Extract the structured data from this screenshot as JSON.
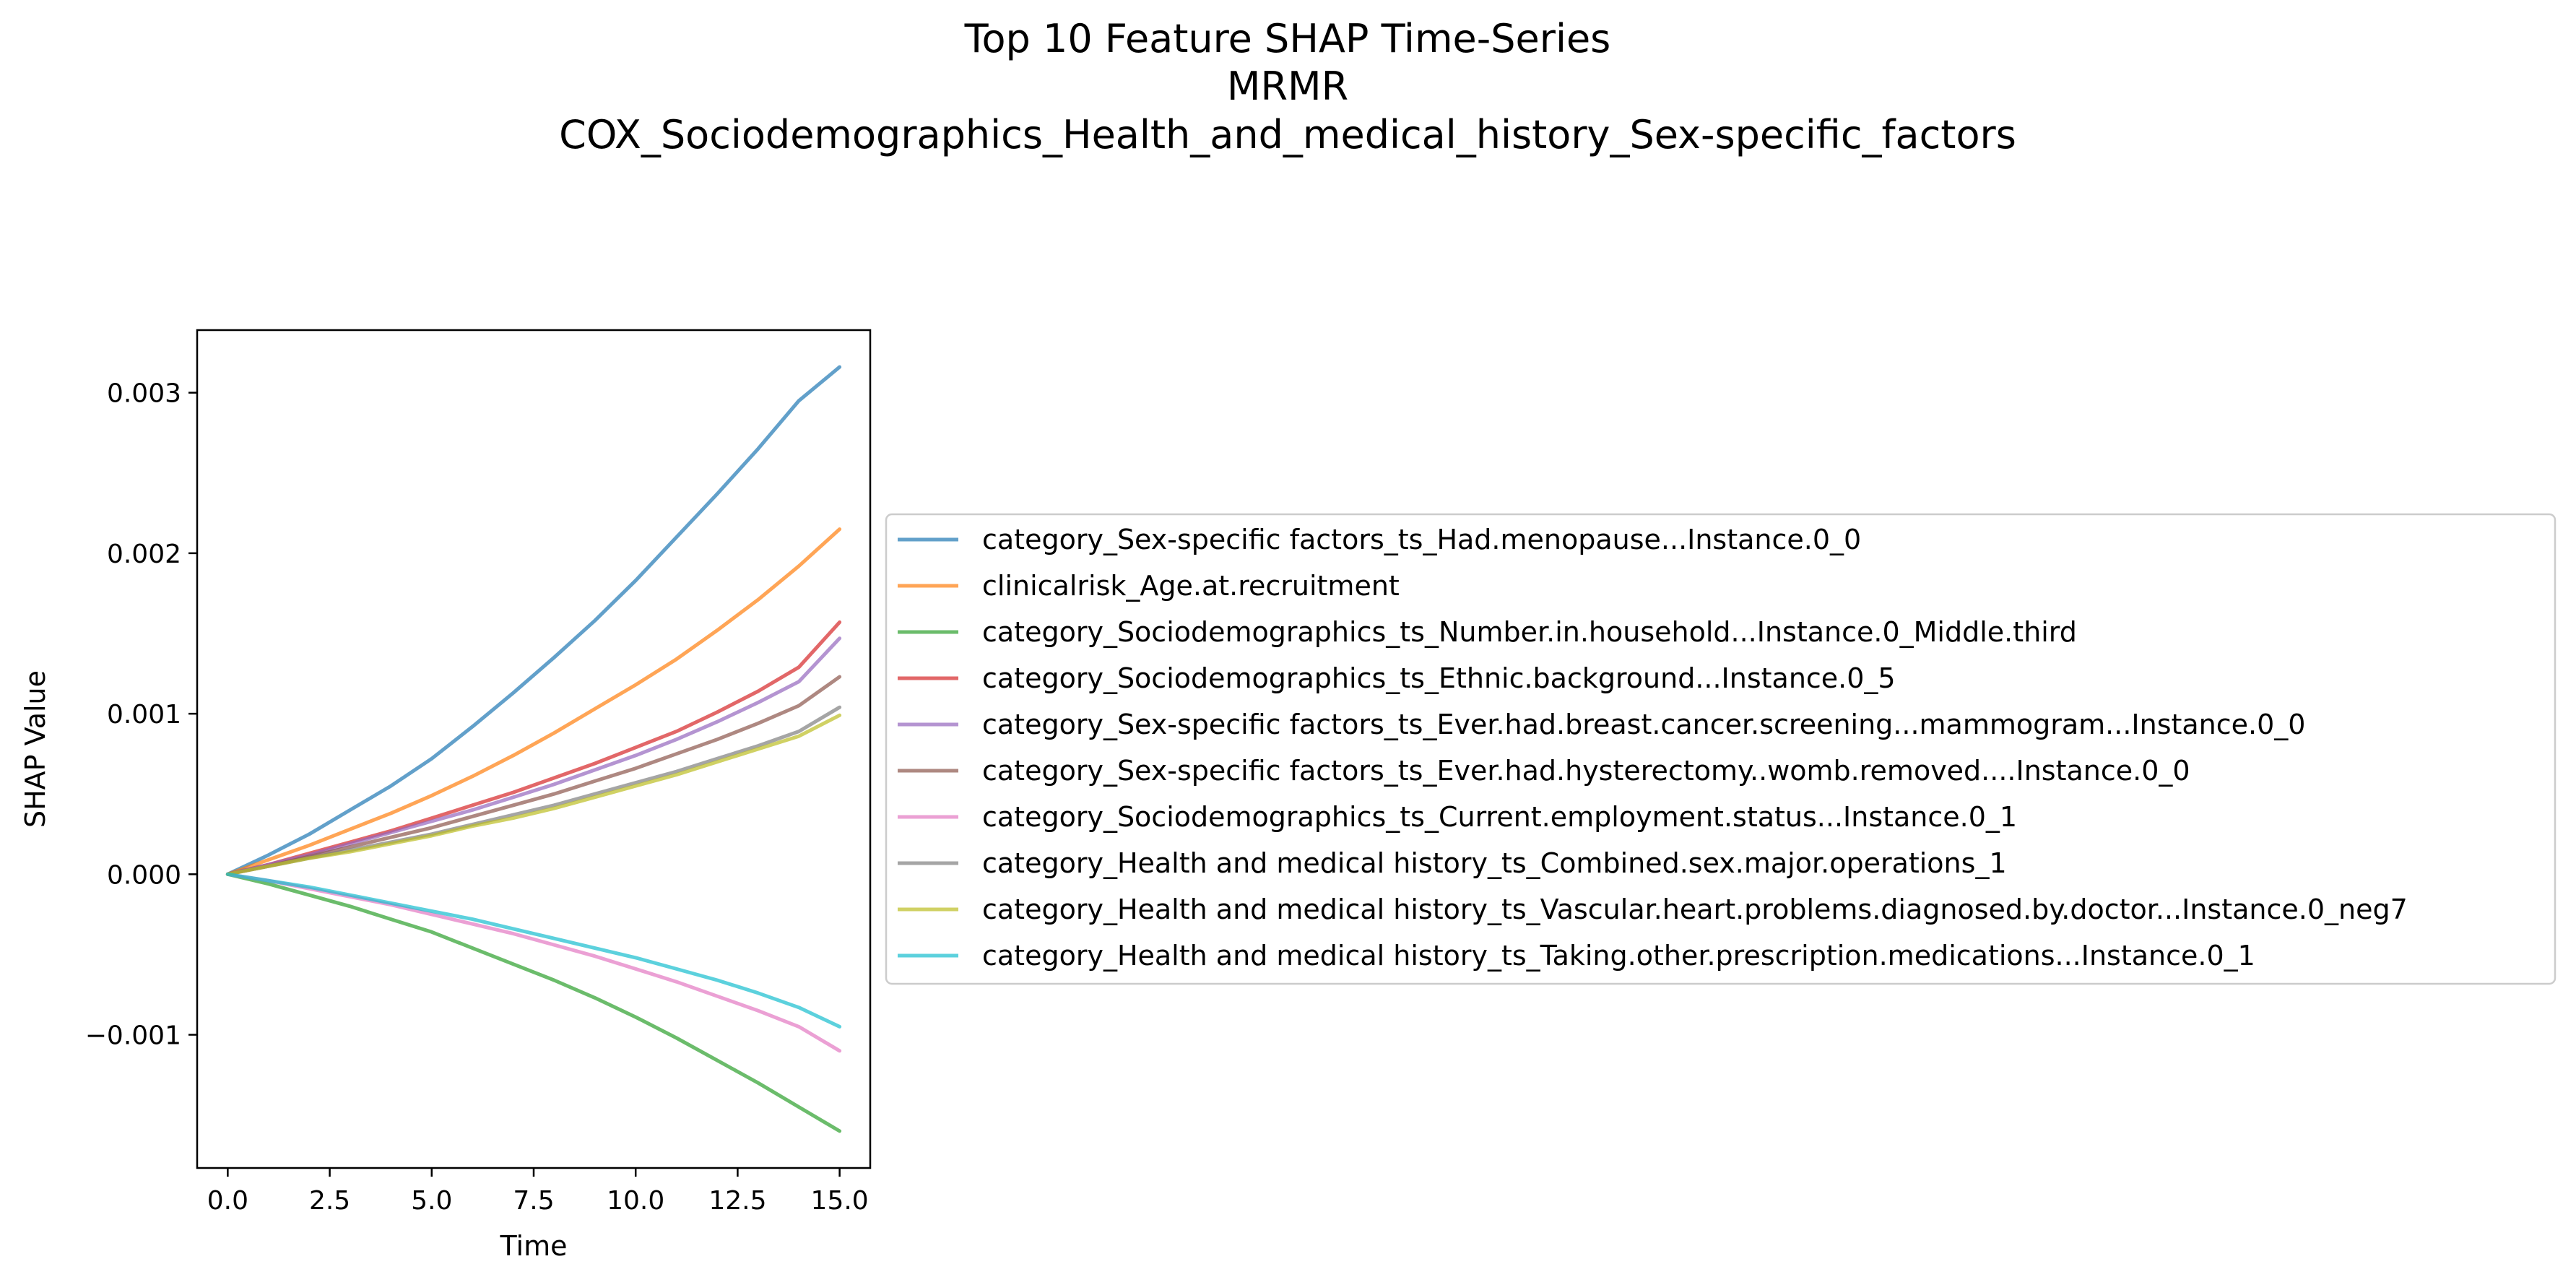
{
  "chart_data": {
    "type": "line",
    "title_lines": [
      "Top 10 Feature SHAP Time-Series",
      "MRMR",
      "COX_Sociodemographics_Health_and_medical_history_Sex-specific_factors"
    ],
    "xlabel": "Time",
    "ylabel": "SHAP Value",
    "xlim": [
      -0.75,
      15.75
    ],
    "ylim": [
      -0.00183,
      0.00339
    ],
    "xticks": [
      0,
      2.5,
      5,
      7.5,
      10,
      12.5,
      15
    ],
    "xtick_labels": [
      "0.0",
      "2.5",
      "5.0",
      "7.5",
      "10.0",
      "12.5",
      "15.0"
    ],
    "yticks": [
      -0.001,
      0,
      0.001,
      0.002,
      0.003
    ],
    "ytick_labels": [
      "−0.001",
      "0.000",
      "0.001",
      "0.002",
      "0.003"
    ],
    "grid": false,
    "legend_position": "center-left outside plot (right side)",
    "x": [
      0,
      1,
      2,
      3,
      4,
      5,
      6,
      7,
      8,
      9,
      10,
      11,
      12,
      13,
      14,
      15
    ],
    "series": [
      {
        "name": "category_Sex-specific factors_ts_Had.menopause...Instance.0_0",
        "color": "#1f77b4",
        "values": [
          0,
          0.00012,
          0.00025,
          0.0004,
          0.00055,
          0.00072,
          0.00092,
          0.00113,
          0.00135,
          0.00158,
          0.00183,
          0.0021,
          0.00237,
          0.00265,
          0.00295,
          0.00316
        ]
      },
      {
        "name": "clinicalrisk_Age.at.recruitment",
        "color": "#ff7f0e",
        "values": [
          0,
          9e-05,
          0.00018,
          0.00028,
          0.00038,
          0.00049,
          0.00061,
          0.00074,
          0.00088,
          0.00103,
          0.00118,
          0.00134,
          0.00152,
          0.00171,
          0.00192,
          0.00215
        ]
      },
      {
        "name": "category_Sociodemographics_ts_Number.in.household...Instance.0_Middle.third",
        "color": "#2ca02c",
        "values": [
          0,
          -6e-05,
          -0.00013,
          -0.0002,
          -0.00028,
          -0.00036,
          -0.00046,
          -0.00056,
          -0.00066,
          -0.00077,
          -0.00089,
          -0.00102,
          -0.00116,
          -0.0013,
          -0.00145,
          -0.0016
        ]
      },
      {
        "name": "category_Sociodemographics_ts_Ethnic.background...Instance.0_5",
        "color": "#d62728",
        "values": [
          0,
          6e-05,
          0.00013,
          0.0002,
          0.00027,
          0.00035,
          0.00043,
          0.00051,
          0.0006,
          0.00069,
          0.00079,
          0.00089,
          0.00101,
          0.00114,
          0.00129,
          0.00157
        ]
      },
      {
        "name": "category_Sex-specific factors_ts_Ever.had.breast.cancer.screening...mammogram...Instance.0_0",
        "color": "#9467bd",
        "values": [
          0,
          6e-05,
          0.00012,
          0.00019,
          0.00026,
          0.00033,
          0.0004,
          0.00048,
          0.00056,
          0.00065,
          0.00074,
          0.00084,
          0.00095,
          0.00107,
          0.0012,
          0.00147
        ]
      },
      {
        "name": "category_Sex-specific factors_ts_Ever.had.hysterectomy..womb.removed....Instance.0_0",
        "color": "#8c564b",
        "values": [
          0,
          5e-05,
          0.00011,
          0.00017,
          0.00023,
          0.00029,
          0.00036,
          0.00043,
          0.0005,
          0.00058,
          0.00066,
          0.00075,
          0.00084,
          0.00094,
          0.00105,
          0.00123
        ]
      },
      {
        "name": "category_Sociodemographics_ts_Current.employment.status...Instance.0_1",
        "color": "#e377c2",
        "values": [
          0,
          -4e-05,
          -9e-05,
          -0.00014,
          -0.00019,
          -0.00025,
          -0.00031,
          -0.00037,
          -0.00044,
          -0.00051,
          -0.00059,
          -0.00067,
          -0.00076,
          -0.00085,
          -0.00095,
          -0.0011
        ]
      },
      {
        "name": "category_Health and medical history_ts_Combined.sex.major.operations_1",
        "color": "#7f7f7f",
        "values": [
          0,
          5e-05,
          0.0001,
          0.00015,
          0.0002,
          0.00025,
          0.00031,
          0.00037,
          0.00043,
          0.0005,
          0.00057,
          0.00064,
          0.00072,
          0.0008,
          0.00089,
          0.00104
        ]
      },
      {
        "name": "category_Health and medical history_ts_Vascular.heart.problems.diagnosed.by.doctor...Instance.0_neg7",
        "color": "#bcbd22",
        "values": [
          0,
          5e-05,
          0.0001,
          0.00014,
          0.00019,
          0.00024,
          0.0003,
          0.00035,
          0.00041,
          0.00048,
          0.00055,
          0.00062,
          0.0007,
          0.00078,
          0.00086,
          0.00099
        ]
      },
      {
        "name": "category_Health and medical history_ts_Taking.other.prescription.medications...Instance.0_1",
        "color": "#17becf",
        "values": [
          0,
          -4e-05,
          -8e-05,
          -0.00013,
          -0.00018,
          -0.00023,
          -0.00028,
          -0.00034,
          -0.0004,
          -0.00046,
          -0.00052,
          -0.00059,
          -0.00066,
          -0.00074,
          -0.00083,
          -0.00095
        ]
      }
    ]
  }
}
